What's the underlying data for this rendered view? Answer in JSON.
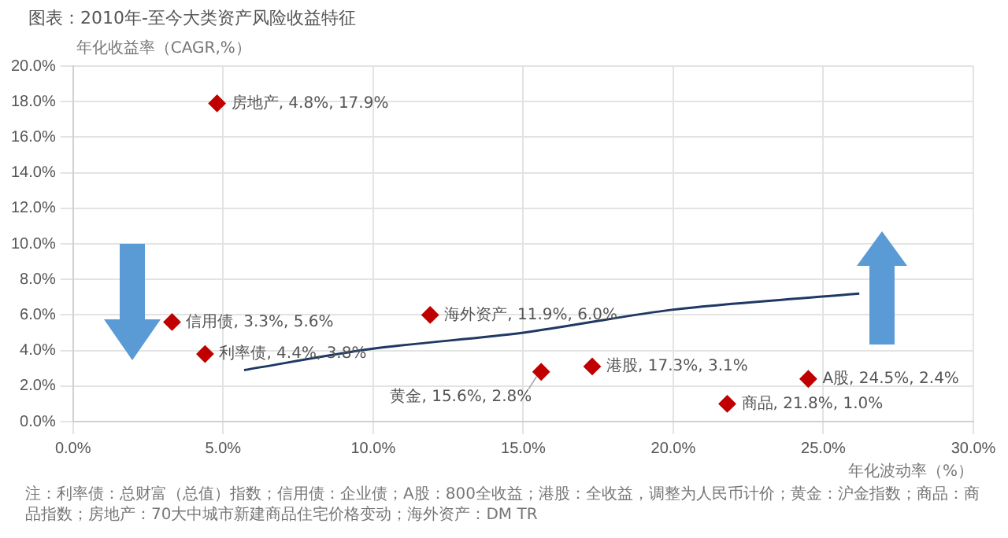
{
  "chart_data": {
    "type": "scatter",
    "title": "图表：2010年-至今大类资产风险收益特征",
    "xlabel": "年化波动率（%）",
    "ylabel": "年化收益率（CAGR,%）",
    "series": [
      {
        "color": "#c00000",
        "marker": "diamond",
        "x": [
          4.8,
          3.3,
          4.4,
          11.9,
          15.6,
          17.3,
          21.8,
          24.5
        ],
        "values": [
          17.9,
          5.6,
          3.8,
          6.0,
          2.8,
          3.1,
          1.0,
          2.4
        ],
        "value_labels": [
          "房地产, 4.8%, 17.9%",
          "信用债, 3.3%, 5.6%",
          "利率债, 4.4%, 3.8%",
          "海外资产, 11.9%, 6.0%",
          "黄金, 15.6%, 2.8%",
          "港股, 17.3%, 3.1%",
          "商品, 21.8%, 1.0%",
          "A股, 24.5%, 2.4%"
        ]
      },
      {
        "type": "line",
        "color": "#1f3864",
        "marker": "none",
        "x": [
          5.7,
          10,
          15,
          20,
          26.2
        ],
        "values": [
          2.9,
          4.1,
          5.0,
          6.3,
          7.2
        ]
      }
    ],
    "xlim": [
      0,
      30
    ],
    "xticks": [
      {
        "value": 0,
        "label": "0.0%"
      },
      {
        "value": 5,
        "label": "5.0%"
      },
      {
        "value": 10,
        "label": "10.0%"
      },
      {
        "value": 15,
        "label": "15.0%"
      },
      {
        "value": 20,
        "label": "20.0%"
      },
      {
        "value": 25,
        "label": "25.0%"
      },
      {
        "value": 30,
        "label": "30.0%"
      }
    ],
    "ylim": [
      0,
      20
    ],
    "yticks": [
      {
        "value": 0,
        "label": "0.0%"
      },
      {
        "value": 2,
        "label": "2.0%"
      },
      {
        "value": 4,
        "label": "4.0%"
      },
      {
        "value": 6,
        "label": "6.0%"
      },
      {
        "value": 8,
        "label": "8.0%"
      },
      {
        "value": 10,
        "label": "10.0%"
      },
      {
        "value": 12,
        "label": "12.0%"
      },
      {
        "value": 14,
        "label": "14.0%"
      },
      {
        "value": 16,
        "label": "16.0%"
      },
      {
        "value": 18,
        "label": "18.0%"
      },
      {
        "value": 20,
        "label": "20.0%"
      }
    ],
    "grid": true,
    "legend": false,
    "annotations": [
      "注：利率债：总财富（总值）指数；信用债：企业债；A股：800全收益；港股：全收益，调整为人民币计价；黄金：沪金指数；商品：商品指数；房地产：70大中城市新建商品住宅价格变动；海外资产：DM TR"
    ]
  }
}
